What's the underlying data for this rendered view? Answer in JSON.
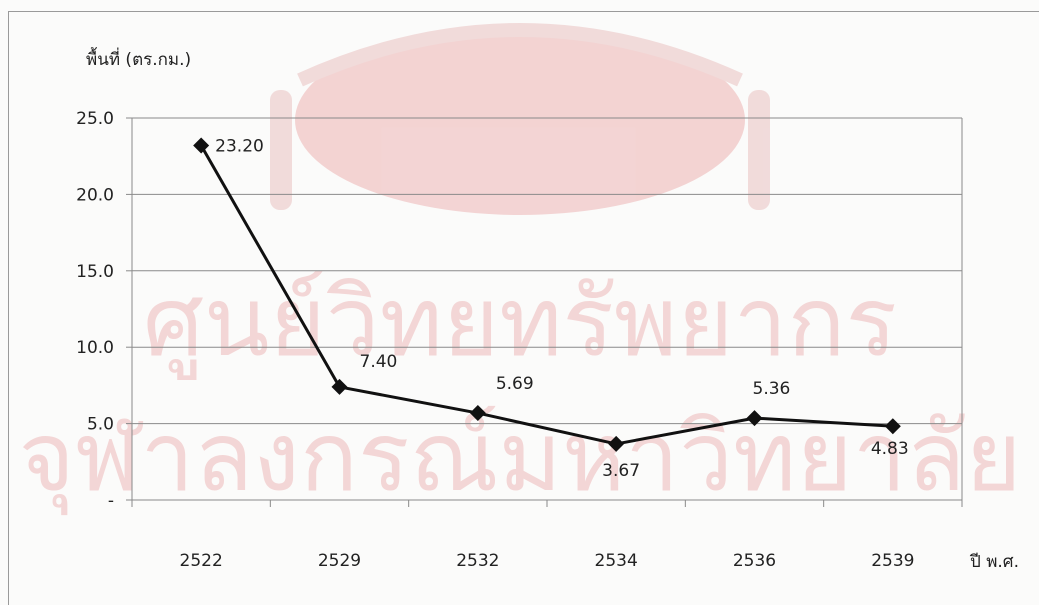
{
  "colors": {
    "line": "#111111",
    "grid": "#8a8a8a",
    "text": "#222222",
    "watermark": "#e7a9a9"
  },
  "watermark": {
    "line1": "ศูนย์วิทยทรัพยากร",
    "line2": "จุฬาลงกรณ์มหาวิทยาลัย"
  },
  "chart_data": {
    "type": "line",
    "title": "",
    "ylabel": "พื้นที่ (ตร.กม.)",
    "xlabel": "ปี พ.ศ.",
    "categories": [
      "2522",
      "2529",
      "2532",
      "2534",
      "2536",
      "2539"
    ],
    "series": [
      {
        "values": [
          23.2,
          7.4,
          5.69,
          3.67,
          5.36,
          4.83
        ],
        "data_labels": [
          "23.20",
          "7.40",
          "5.69",
          "3.67",
          "5.36",
          "4.83"
        ]
      }
    ],
    "ylim": [
      0,
      25
    ],
    "yticks": [
      0,
      5,
      10,
      15,
      20,
      25
    ],
    "ytick_labels": [
      "-",
      "5.0",
      "10.0",
      "15.0",
      "20.0",
      "25.0"
    ],
    "grid": true,
    "marker": "diamond"
  }
}
